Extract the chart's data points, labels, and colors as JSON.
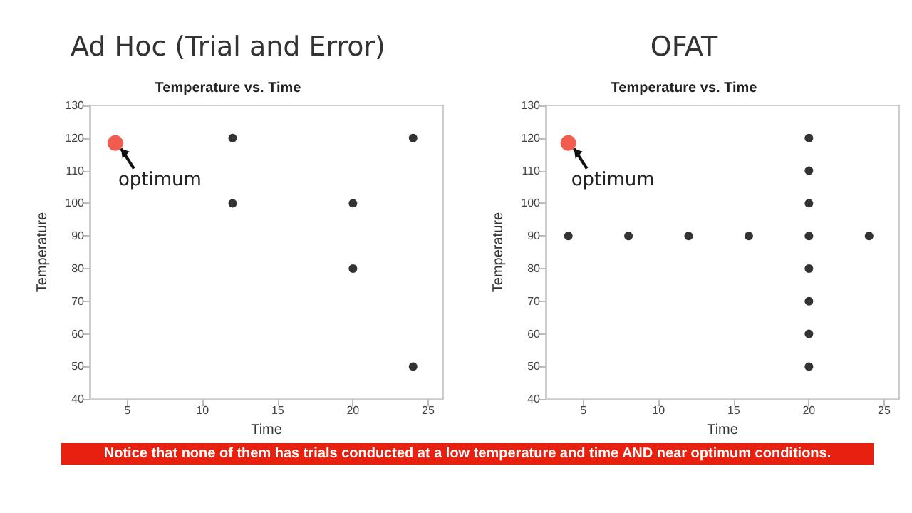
{
  "chart_data": [
    {
      "type": "scatter",
      "title": "Ad Hoc (Trial and Error)",
      "subtitle": "Temperature vs. Time",
      "xlabel": "Time",
      "ylabel": "Temperature",
      "series": [
        {
          "color": "#000000",
          "x": [
            12,
            12,
            20,
            20,
            24,
            24
          ],
          "values": [
            120,
            100,
            100,
            80,
            120,
            50
          ]
        },
        {
          "color": "#ee3322",
          "x": [
            4.2
          ],
          "values": [
            118.5
          ]
        }
      ],
      "xlim": [
        2.5,
        26
      ],
      "xticks": [
        5,
        10,
        15,
        20,
        25
      ],
      "ylim": [
        40,
        130
      ],
      "yticks": [
        40,
        50,
        60,
        70,
        80,
        90,
        100,
        110,
        120,
        130
      ],
      "grid": false,
      "marker": "circle",
      "annotations": [
        {
          "text": "optimum",
          "x": 4.2,
          "y": 118.5
        },
        "Notice that none of them has trials conducted at a low temperature and time AND near optimum conditions."
      ]
    },
    {
      "type": "scatter",
      "title": "OFAT",
      "subtitle": "Temperature vs. Time",
      "xlabel": "Time",
      "ylabel": "Temperature",
      "series": [
        {
          "color": "#000000",
          "x": [
            4,
            8,
            12,
            16,
            20,
            24,
            20,
            20,
            20,
            20,
            20,
            20,
            20
          ],
          "values": [
            90,
            90,
            90,
            90,
            90,
            90,
            120,
            110,
            100,
            80,
            70,
            60,
            50
          ]
        },
        {
          "color": "#ee3322",
          "x": [
            4
          ],
          "values": [
            118.5
          ]
        }
      ],
      "xlim": [
        2.5,
        26
      ],
      "xticks": [
        5,
        10,
        15,
        20,
        25
      ],
      "ylim": [
        40,
        130
      ],
      "yticks": [
        40,
        50,
        60,
        70,
        80,
        90,
        100,
        110,
        120,
        130
      ],
      "grid": false,
      "marker": "circle",
      "annotations": [
        {
          "text": "optimum",
          "x": 4,
          "y": 118.5
        }
      ]
    }
  ]
}
